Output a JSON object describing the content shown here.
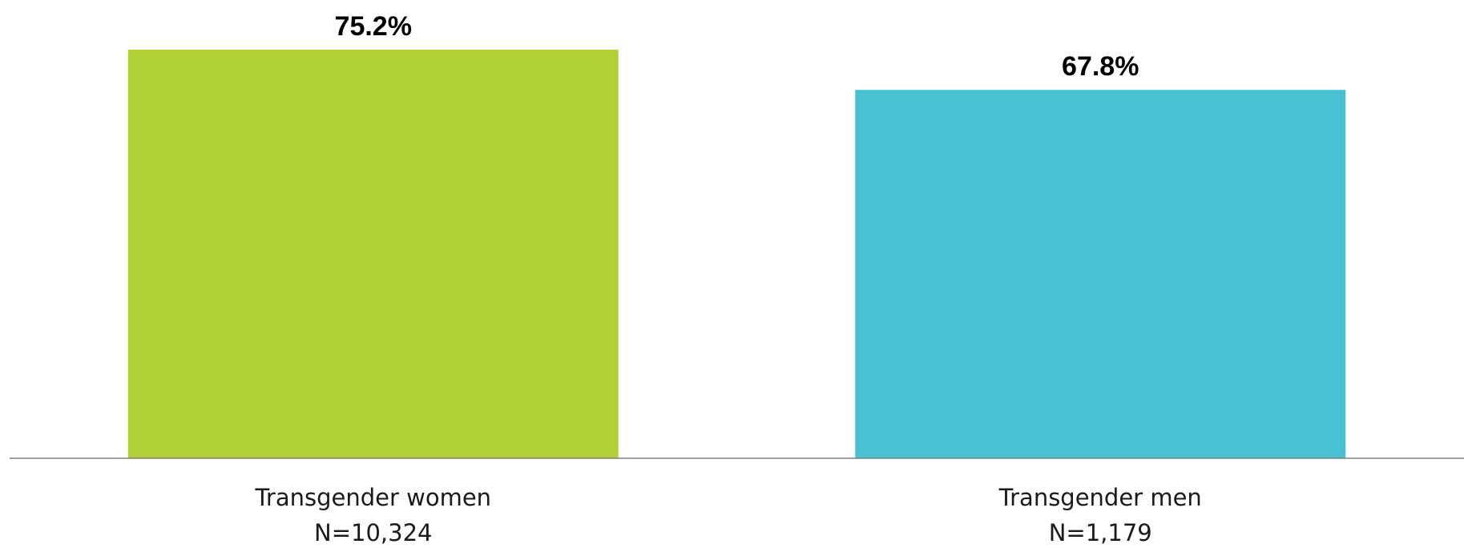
{
  "chart_data": {
    "type": "bar",
    "categories": [
      "Transgender women",
      "Transgender men"
    ],
    "sample_sizes": [
      "N=10,324",
      "N=1,179"
    ],
    "values": [
      75.2,
      67.8
    ],
    "value_labels": [
      "75.2%",
      "67.8%"
    ],
    "colors": [
      "#b0d236",
      "#48c2d3"
    ],
    "title": "",
    "xlabel": "",
    "ylabel": "",
    "ylim": [
      0,
      75.2
    ],
    "grid": false,
    "legend": "none"
  }
}
